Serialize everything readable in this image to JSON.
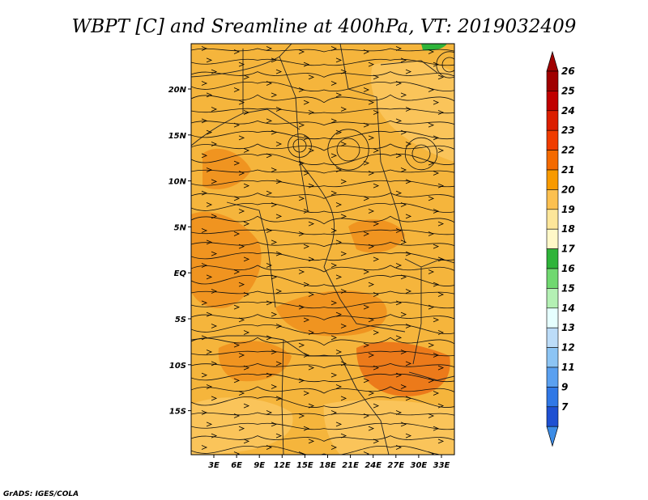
{
  "title": "WBPT [C] and Sreamline at 400hPa, VT: 2019032409",
  "credit": "GrADS: IGES/COLA",
  "map": {
    "lon_ticks": [
      "3E",
      "6E",
      "9E",
      "12E",
      "15E",
      "18E",
      "21E",
      "24E",
      "27E",
      "30E",
      "33E"
    ],
    "lat_ticks": [
      "20N",
      "15N",
      "10N",
      "5N",
      "EQ",
      "5S",
      "10S",
      "15S"
    ],
    "field": "WBPT",
    "field_units": "C",
    "level": "400hPa",
    "valid_time": "2019032409"
  },
  "colorbar": {
    "labels": [
      "26",
      "25",
      "24",
      "23",
      "22",
      "21",
      "20",
      "19",
      "18",
      "17",
      "16",
      "15",
      "14",
      "13",
      "12",
      "11",
      "9",
      "7"
    ],
    "colors": [
      "#a00000",
      "#c00000",
      "#dc1e00",
      "#f03c00",
      "#f46a00",
      "#f89a00",
      "#fcc050",
      "#fde69a",
      "#fff8c8",
      "#2fb43a",
      "#70d870",
      "#b4f0b4",
      "#e6ffff",
      "#bcdcf8",
      "#8cc4f4",
      "#5aa0f0",
      "#3078e6",
      "#1e50d2"
    ],
    "top_arrow_color": "#a00000",
    "bottom_arrow_color": "#3c8ce6"
  },
  "palette": {
    "base": "#f5b53c",
    "warm": "#f09420",
    "hot": "#ec7a1a",
    "cool": "#fac45a",
    "green": "#2fb43a"
  }
}
